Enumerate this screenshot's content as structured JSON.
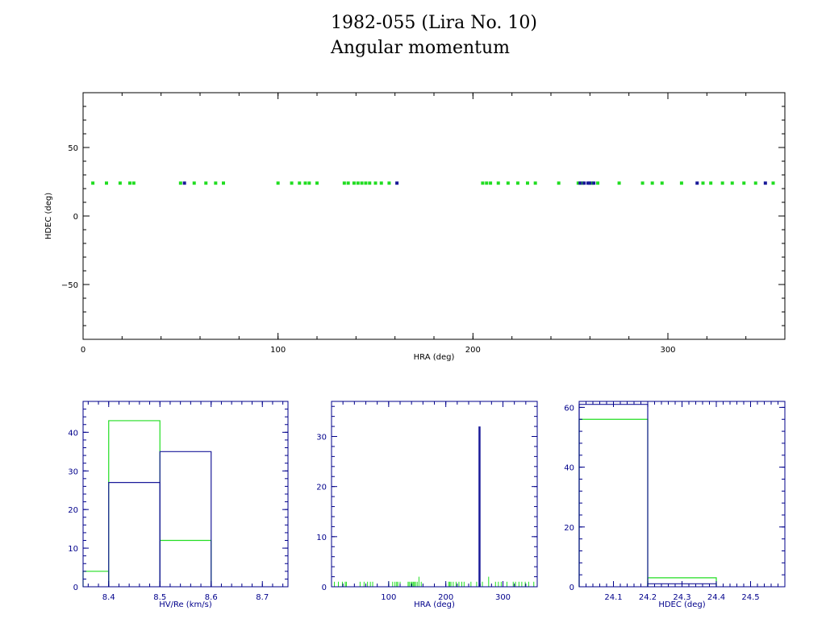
{
  "title": "1982-055 (Lira No. 10)",
  "subtitle": "Angular momentum",
  "colors": {
    "series_a": "#22dd22",
    "series_b": "#1a1a99",
    "frame_small": "#00008b",
    "frame_main": "#000000"
  },
  "chart_data": [
    {
      "type": "scatter",
      "xlabel": "HRA (deg)",
      "ylabel": "HDEC (deg)",
      "xlim": [
        0,
        360
      ],
      "ylim": [
        -90,
        90
      ],
      "xticks": [
        0,
        100,
        200,
        300
      ],
      "yticks": [
        -50,
        0,
        50
      ],
      "grid": false,
      "series": [
        {
          "color": "#22dd22",
          "points": [
            [
              5,
              24
            ],
            [
              12,
              24
            ],
            [
              19,
              24
            ],
            [
              24,
              24
            ],
            [
              26,
              24
            ],
            [
              50,
              24
            ],
            [
              57,
              24
            ],
            [
              63,
              24
            ],
            [
              68,
              24
            ],
            [
              72,
              24
            ],
            [
              100,
              24
            ],
            [
              107,
              24
            ],
            [
              111,
              24
            ],
            [
              114,
              24
            ],
            [
              116,
              24
            ],
            [
              120,
              24
            ],
            [
              134,
              24
            ],
            [
              136,
              24
            ],
            [
              139,
              24
            ],
            [
              141,
              24
            ],
            [
              143,
              24
            ],
            [
              145,
              24
            ],
            [
              147,
              24
            ],
            [
              150,
              24
            ],
            [
              153,
              24
            ],
            [
              157,
              24
            ],
            [
              205,
              24
            ],
            [
              207,
              24
            ],
            [
              209,
              24
            ],
            [
              213,
              24
            ],
            [
              218,
              24
            ],
            [
              223,
              24
            ],
            [
              228,
              24
            ],
            [
              232,
              24
            ],
            [
              244,
              24
            ],
            [
              254,
              24
            ],
            [
              256,
              24
            ],
            [
              261,
              24
            ],
            [
              264,
              24
            ],
            [
              275,
              24
            ],
            [
              287,
              24
            ],
            [
              292,
              24
            ],
            [
              297,
              24
            ],
            [
              307,
              24
            ],
            [
              318,
              24
            ],
            [
              322,
              24
            ],
            [
              328,
              24
            ],
            [
              333,
              24
            ],
            [
              339,
              24
            ],
            [
              345,
              24
            ],
            [
              354,
              24
            ]
          ]
        },
        {
          "color": "#1a1a99",
          "points": [
            [
              52,
              24
            ],
            [
              161,
              24
            ],
            [
              255,
              24
            ],
            [
              257,
              24
            ],
            [
              259,
              24
            ],
            [
              260,
              24
            ],
            [
              262,
              24
            ],
            [
              315,
              24
            ],
            [
              350,
              24
            ]
          ]
        }
      ]
    },
    {
      "type": "histogram",
      "xlabel": "HV/Re (km/s)",
      "xlim": [
        8.35,
        8.75
      ],
      "ylim": [
        0,
        48
      ],
      "xticks": [
        8.4,
        8.5,
        8.6,
        8.7
      ],
      "yticks": [
        0,
        10,
        20,
        30,
        40
      ],
      "series": [
        {
          "color": "#22dd22",
          "bins": [
            [
              8.35,
              8.4,
              4
            ],
            [
              8.4,
              8.5,
              43
            ],
            [
              8.5,
              8.6,
              12
            ]
          ]
        },
        {
          "color": "#1a1a99",
          "bins": [
            [
              8.4,
              8.5,
              27
            ],
            [
              8.5,
              8.6,
              35
            ]
          ]
        }
      ]
    },
    {
      "type": "histogram",
      "xlabel": "HRA (deg)",
      "xlim": [
        0,
        360
      ],
      "ylim": [
        0,
        37
      ],
      "xticks": [
        100,
        200,
        300
      ],
      "yticks": [
        0,
        10,
        20,
        30
      ],
      "series": [
        {
          "color": "#22dd22",
          "spikes": [
            [
              5,
              1
            ],
            [
              12,
              1
            ],
            [
              19,
              1
            ],
            [
              24,
              1
            ],
            [
              26,
              1
            ],
            [
              50,
              1
            ],
            [
              57,
              1
            ],
            [
              63,
              1
            ],
            [
              68,
              1
            ],
            [
              72,
              1
            ],
            [
              100,
              1
            ],
            [
              107,
              1
            ],
            [
              111,
              1
            ],
            [
              114,
              1
            ],
            [
              116,
              1
            ],
            [
              120,
              1
            ],
            [
              134,
              1
            ],
            [
              136,
              1
            ],
            [
              139,
              1
            ],
            [
              141,
              1
            ],
            [
              143,
              1
            ],
            [
              145,
              1
            ],
            [
              147,
              1
            ],
            [
              150,
              1
            ],
            [
              153,
              2
            ],
            [
              157,
              1
            ],
            [
              205,
              1
            ],
            [
              207,
              1
            ],
            [
              209,
              1
            ],
            [
              213,
              1
            ],
            [
              218,
              1
            ],
            [
              223,
              1
            ],
            [
              228,
              1
            ],
            [
              232,
              1
            ],
            [
              244,
              1
            ],
            [
              254,
              1
            ],
            [
              264,
              1
            ],
            [
              275,
              2
            ],
            [
              287,
              1
            ],
            [
              292,
              1
            ],
            [
              297,
              1
            ],
            [
              307,
              1
            ],
            [
              318,
              1
            ],
            [
              322,
              1
            ],
            [
              328,
              1
            ],
            [
              333,
              1
            ],
            [
              339,
              1
            ],
            [
              345,
              1
            ],
            [
              354,
              1
            ]
          ]
        },
        {
          "color": "#1a1a99",
          "spikes": [
            [
              259,
              32
            ]
          ]
        }
      ]
    },
    {
      "type": "histogram",
      "xlabel": "HDEC (deg)",
      "xlim": [
        24.0,
        24.6
      ],
      "ylim": [
        0,
        62
      ],
      "xticks": [
        24.1,
        24.2,
        24.3,
        24.4,
        24.5
      ],
      "yticks": [
        0,
        20,
        40,
        60
      ],
      "series": [
        {
          "color": "#22dd22",
          "bins": [
            [
              24.0,
              24.2,
              56
            ],
            [
              24.2,
              24.4,
              3
            ]
          ]
        },
        {
          "color": "#1a1a99",
          "bins": [
            [
              24.0,
              24.2,
              61
            ],
            [
              24.2,
              24.4,
              1
            ]
          ]
        }
      ]
    }
  ]
}
